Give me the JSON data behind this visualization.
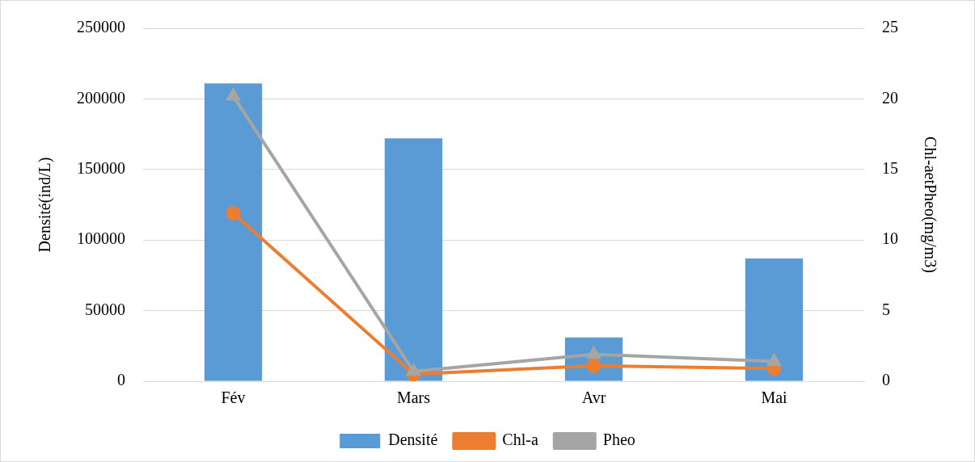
{
  "chart_data": {
    "type": "bar",
    "ylabel": "Densité(ind/L)",
    "y2label": "Chl-aetPheo(mg/m3)",
    "categories": [
      "Fév",
      "Mars",
      "Avr",
      "Mai"
    ],
    "series": [
      {
        "name": "Densité",
        "color": "#5b9bd5",
        "values": [
          211000,
          172000,
          31000,
          87000
        ]
      },
      {
        "name": "Chl-a",
        "type": "line",
        "axis": "y2",
        "marker": "circle",
        "color": "#ed7d31",
        "values": [
          11.9,
          0.5,
          1.1,
          0.9
        ]
      },
      {
        "name": "Pheo",
        "type": "line",
        "axis": "y2",
        "marker": "triangle",
        "color": "#a5a5a5",
        "values": [
          20.2,
          0.7,
          1.9,
          1.4
        ]
      }
    ],
    "ylim": [
      0,
      250000
    ],
    "yticks": [
      0,
      50000,
      100000,
      150000,
      200000,
      250000
    ],
    "y2lim": [
      0,
      25
    ],
    "y2ticks": [
      0,
      5,
      10,
      15,
      20,
      25
    ],
    "grid": "y",
    "legend": "bottom"
  }
}
